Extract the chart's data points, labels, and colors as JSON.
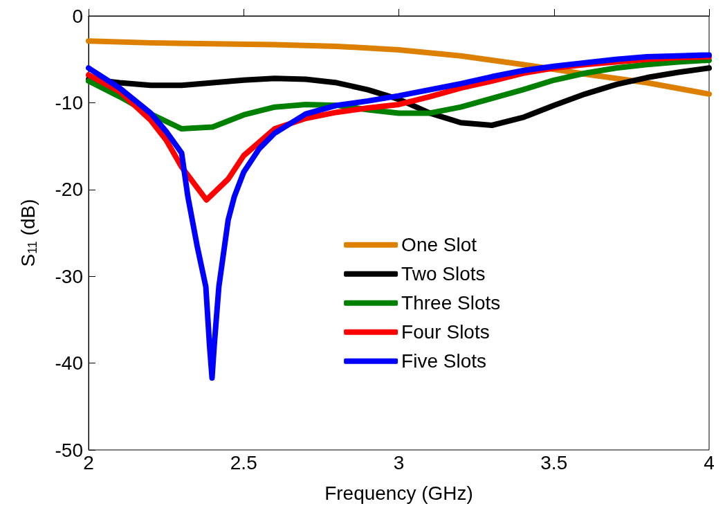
{
  "chart_data": {
    "type": "line",
    "xlabel": "Frequency (GHz)",
    "ylabel": "S$_{11}$ (dB)",
    "xlim": [
      2,
      4
    ],
    "ylim": [
      -50,
      0
    ],
    "xticks": [
      2,
      2.5,
      3,
      3.5,
      4
    ],
    "yticks": [
      -50,
      -40,
      -30,
      -20,
      -10,
      0
    ],
    "grid": false,
    "legend": "center",
    "marker": "none",
    "line_style": "solid",
    "series": [
      {
        "name": "One Slot",
        "color": "#dd8000",
        "x": [
          2,
          2.2,
          2.4,
          2.6,
          2.8,
          3,
          3.2,
          3.4,
          3.6,
          3.8,
          4
        ],
        "values": [
          -2.9,
          -3.1,
          -3.2,
          -3.3,
          -3.5,
          -3.9,
          -4.6,
          -5.6,
          -6.7,
          -7.7,
          -9
        ]
      },
      {
        "name": "Two Slots",
        "color": "#000000",
        "x": [
          2,
          2.1,
          2.2,
          2.3,
          2.4,
          2.5,
          2.6,
          2.7,
          2.8,
          2.9,
          3,
          3.1,
          3.2,
          3.3,
          3.4,
          3.5,
          3.6,
          3.7,
          3.8,
          3.9,
          4
        ],
        "values": [
          -7.3,
          -7.7,
          -8,
          -8,
          -7.7,
          -7.4,
          -7.2,
          -7.3,
          -7.7,
          -8.5,
          -9.6,
          -11.2,
          -12.3,
          -12.6,
          -11.7,
          -10.3,
          -9,
          -7.9,
          -7.1,
          -6.5,
          -6
        ]
      },
      {
        "name": "Three Slots",
        "color": "#008000",
        "x": [
          2,
          2.1,
          2.2,
          2.3,
          2.4,
          2.5,
          2.6,
          2.7,
          2.8,
          2.9,
          3,
          3.1,
          3.2,
          3.3,
          3.4,
          3.5,
          3.6,
          3.7,
          3.8,
          3.9,
          4
        ],
        "values": [
          -7.5,
          -9.3,
          -11.3,
          -13,
          -12.8,
          -11.4,
          -10.5,
          -10.2,
          -10.3,
          -10.8,
          -11.2,
          -11.2,
          -10.5,
          -9.5,
          -8.5,
          -7.4,
          -6.6,
          -6,
          -5.6,
          -5.3,
          -5.1
        ]
      },
      {
        "name": "Four Slots",
        "color": "#ff0000",
        "x": [
          2,
          2.1,
          2.2,
          2.25,
          2.3,
          2.38,
          2.45,
          2.5,
          2.6,
          2.7,
          2.8,
          2.9,
          3,
          3.1,
          3.2,
          3.3,
          3.4,
          3.5,
          3.6,
          3.7,
          3.8,
          3.9,
          4
        ],
        "values": [
          -6.8,
          -8.7,
          -12,
          -14.3,
          -17.4,
          -21.2,
          -18.8,
          -16.1,
          -13,
          -11.8,
          -11.1,
          -10.6,
          -10.2,
          -9.3,
          -8.3,
          -7.5,
          -6.6,
          -6,
          -5.6,
          -5.3,
          -5,
          -4.8,
          -4.7
        ]
      },
      {
        "name": "Five Slots",
        "color": "#0000ff",
        "x": [
          2,
          2.1,
          2.2,
          2.25,
          2.3,
          2.32,
          2.35,
          2.378,
          2.39,
          2.398,
          2.405,
          2.42,
          2.45,
          2.47,
          2.5,
          2.55,
          2.6,
          2.7,
          2.8,
          2.9,
          3,
          3.1,
          3.2,
          3.3,
          3.4,
          3.5,
          3.6,
          3.7,
          3.8,
          3.9,
          4
        ],
        "values": [
          -6,
          -8.3,
          -11.2,
          -13.3,
          -15.8,
          -20.8,
          -26.5,
          -31.2,
          -38,
          -41.7,
          -38,
          -31.2,
          -23.5,
          -20.8,
          -18,
          -15.3,
          -13.5,
          -11.3,
          -10.3,
          -9.8,
          -9.2,
          -8.5,
          -7.8,
          -7,
          -6.3,
          -5.8,
          -5.4,
          -5,
          -4.7,
          -4.6,
          -4.5
        ]
      }
    ]
  }
}
